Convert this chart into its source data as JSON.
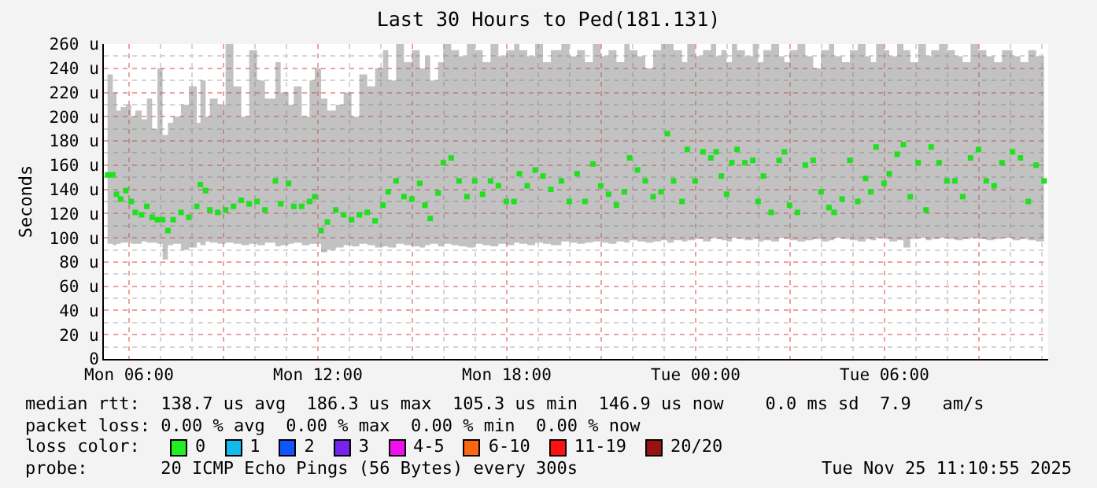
{
  "chart_data": {
    "type": "scatter",
    "title": "Last 30 Hours to Ped(181.131)",
    "ylabel": "Seconds",
    "xlim": [
      "2025-11-24T05:12",
      "2025-11-25T11:12"
    ],
    "xticks": [
      {
        "value": "2025-11-24T06:00",
        "label": "Mon 06:00"
      },
      {
        "value": "2025-11-24T09:00",
        "label": null
      },
      {
        "value": "2025-11-24T12:00",
        "label": "Mon 12:00"
      },
      {
        "value": "2025-11-24T15:00",
        "label": null
      },
      {
        "value": "2025-11-24T18:00",
        "label": "Mon 18:00"
      },
      {
        "value": "2025-11-24T21:00",
        "label": null
      },
      {
        "value": "2025-11-25T00:00",
        "label": "Tue 00:00"
      },
      {
        "value": "2025-11-25T03:00",
        "label": null
      },
      {
        "value": "2025-11-25T06:00",
        "label": "Tue 06:00"
      },
      {
        "value": "2025-11-25T09:00",
        "label": null
      }
    ],
    "ylim": [
      0,
      260
    ],
    "yticks": [
      0,
      {
        "value": 20,
        "label": "20 u"
      },
      {
        "value": 40,
        "label": "40 u"
      },
      {
        "value": 60,
        "label": "60 u"
      },
      {
        "value": 80,
        "label": "80 u"
      },
      {
        "value": 100,
        "label": "100 u"
      },
      {
        "value": 120,
        "label": "120 u"
      },
      {
        "value": 140,
        "label": "140 u"
      },
      {
        "value": 160,
        "label": "160 u"
      },
      {
        "value": 180,
        "label": "180 u"
      },
      {
        "value": 200,
        "label": "200 u"
      },
      {
        "value": 220,
        "label": "220 u"
      },
      {
        "value": 240,
        "label": "240 u"
      },
      {
        "value": 260,
        "label": "260 u"
      }
    ],
    "grid": true,
    "marker": "square",
    "x": [
      "2025-11-24T05:19",
      "2025-11-24T05:29",
      "2025-11-24T05:36",
      "2025-11-24T05:44",
      "2025-11-24T05:54",
      "2025-11-24T06:04",
      "2025-11-24T06:12",
      "2025-11-24T06:24",
      "2025-11-24T06:34",
      "2025-11-24T06:44",
      "2025-11-24T06:54",
      "2025-11-24T07:04",
      "2025-11-24T07:14",
      "2025-11-24T07:24",
      "2025-11-24T07:39",
      "2025-11-24T07:54",
      "2025-11-24T08:09",
      "2025-11-24T08:16",
      "2025-11-24T08:26",
      "2025-11-24T08:34",
      "2025-11-24T08:49",
      "2025-11-24T09:04",
      "2025-11-24T09:19",
      "2025-11-24T09:34",
      "2025-11-24T09:49",
      "2025-11-24T10:04",
      "2025-11-24T10:19",
      "2025-11-24T10:39",
      "2025-11-24T10:49",
      "2025-11-24T11:04",
      "2025-11-24T11:14",
      "2025-11-24T11:29",
      "2025-11-24T11:44",
      "2025-11-24T11:54",
      "2025-11-24T12:06",
      "2025-11-24T12:18",
      "2025-11-24T12:34",
      "2025-11-24T12:49",
      "2025-11-24T13:04",
      "2025-11-24T13:19",
      "2025-11-24T13:34",
      "2025-11-24T13:49",
      "2025-11-24T14:04",
      "2025-11-24T14:14",
      "2025-11-24T14:29",
      "2025-11-24T14:44",
      "2025-11-24T14:59",
      "2025-11-24T15:14",
      "2025-11-24T15:24",
      "2025-11-24T15:34",
      "2025-11-24T15:49",
      "2025-11-24T15:59",
      "2025-11-24T16:14",
      "2025-11-24T16:29",
      "2025-11-24T16:44",
      "2025-11-24T16:59",
      "2025-11-24T17:14",
      "2025-11-24T17:29",
      "2025-11-24T17:44",
      "2025-11-24T17:59",
      "2025-11-24T18:14",
      "2025-11-24T18:24",
      "2025-11-24T18:39",
      "2025-11-24T18:54",
      "2025-11-24T19:09",
      "2025-11-24T19:24",
      "2025-11-24T19:44",
      "2025-11-24T19:59",
      "2025-11-24T20:14",
      "2025-11-24T20:29",
      "2025-11-24T20:44",
      "2025-11-24T20:59",
      "2025-11-24T21:14",
      "2025-11-24T21:29",
      "2025-11-24T21:44",
      "2025-11-24T21:54",
      "2025-11-24T22:09",
      "2025-11-24T22:24",
      "2025-11-24T22:39",
      "2025-11-24T22:54",
      "2025-11-24T23:06",
      "2025-11-24T23:18",
      "2025-11-24T23:34",
      "2025-11-24T23:44",
      "2025-11-24T23:59",
      "2025-11-25T00:14",
      "2025-11-25T00:29",
      "2025-11-25T00:39",
      "2025-11-25T00:49",
      "2025-11-25T00:59",
      "2025-11-25T01:09",
      "2025-11-25T01:19",
      "2025-11-25T01:34",
      "2025-11-25T01:49",
      "2025-11-25T01:59",
      "2025-11-25T02:09",
      "2025-11-25T02:24",
      "2025-11-25T02:39",
      "2025-11-25T02:49",
      "2025-11-25T02:59",
      "2025-11-25T03:14",
      "2025-11-25T03:29",
      "2025-11-25T03:44",
      "2025-11-25T03:59",
      "2025-11-25T04:14",
      "2025-11-25T04:24",
      "2025-11-25T04:39",
      "2025-11-25T04:54",
      "2025-11-25T05:09",
      "2025-11-25T05:24",
      "2025-11-25T05:34",
      "2025-11-25T05:44",
      "2025-11-25T05:59",
      "2025-11-25T06:09",
      "2025-11-25T06:24",
      "2025-11-25T06:36",
      "2025-11-25T06:49",
      "2025-11-25T07:04",
      "2025-11-25T07:19",
      "2025-11-25T07:29",
      "2025-11-25T07:44",
      "2025-11-25T07:59",
      "2025-11-25T08:14",
      "2025-11-25T08:29",
      "2025-11-25T08:44",
      "2025-11-25T08:59",
      "2025-11-25T09:14",
      "2025-11-25T09:29",
      "2025-11-25T09:44",
      "2025-11-25T10:04",
      "2025-11-25T10:19",
      "2025-11-25T10:34",
      "2025-11-25T10:49",
      "2025-11-25T11:04"
    ],
    "series": [
      {
        "color": "#20e020",
        "values": [
          152,
          152,
          136,
          132,
          139,
          130,
          121,
          119,
          126,
          117,
          115,
          115,
          106,
          115,
          121,
          117,
          126,
          144,
          139,
          123,
          121,
          123,
          126,
          131,
          128,
          130,
          123,
          147,
          128,
          145,
          126,
          126,
          130,
          134,
          106,
          113,
          123,
          119,
          115,
          119,
          121,
          114,
          127,
          138,
          147,
          134,
          132,
          145,
          127,
          116,
          137,
          162,
          166,
          147,
          134,
          147,
          136,
          147,
          143,
          130,
          130,
          153,
          143,
          156,
          151,
          140,
          147,
          130,
          153,
          130,
          161,
          143,
          136,
          127,
          138,
          166,
          156,
          147,
          134,
          138,
          186,
          147,
          130,
          173,
          147,
          171,
          166,
          171,
          151,
          136,
          162,
          173,
          162,
          164,
          130,
          151,
          121,
          164,
          171,
          127,
          121,
          160,
          164,
          138,
          125,
          121,
          132,
          164,
          130,
          149,
          138,
          175,
          145,
          153,
          169,
          177,
          134,
          162,
          123,
          175,
          162,
          147,
          147,
          134,
          166,
          173,
          147,
          143,
          162,
          171,
          166,
          130,
          160,
          147
        ],
        "lower": [
          95,
          94,
          95,
          96,
          96,
          95,
          95,
          97,
          96,
          96,
          95,
          82,
          94,
          95,
          90,
          92,
          96,
          94,
          97,
          96,
          95,
          96,
          95,
          94,
          95,
          94,
          96,
          93,
          94,
          95,
          96,
          94,
          95,
          95,
          88,
          90,
          92,
          94,
          93,
          95,
          94,
          92,
          93,
          92,
          95,
          94,
          93,
          92,
          94,
          95,
          93,
          95,
          94,
          93,
          92,
          95,
          94,
          93,
          95,
          94,
          96,
          95,
          94,
          96,
          95,
          94,
          97,
          96,
          95,
          96,
          97,
          96,
          95,
          97,
          96,
          98,
          97,
          96,
          97,
          98,
          96,
          98,
          97,
          98,
          99,
          97,
          100,
          99,
          98,
          97,
          100,
          99,
          98,
          99,
          97,
          98,
          97,
          100,
          99,
          98,
          97,
          98,
          99,
          97,
          98,
          100,
          99,
          98,
          97,
          99,
          98,
          100,
          99,
          97,
          98,
          92,
          99,
          100,
          98,
          99,
          100,
          99,
          98,
          99,
          100,
          99,
          98,
          99,
          100,
          98,
          99,
          98,
          97,
          99
        ],
        "upper": [
          235,
          220,
          205,
          208,
          210,
          200,
          205,
          198,
          215,
          190,
          240,
          185,
          195,
          200,
          210,
          225,
          195,
          230,
          200,
          215,
          210,
          260,
          225,
          200,
          255,
          230,
          215,
          245,
          220,
          210,
          225,
          200,
          230,
          240,
          215,
          205,
          210,
          220,
          200,
          235,
          225,
          240,
          255,
          230,
          260,
          245,
          255,
          240,
          250,
          230,
          245,
          260,
          255,
          250,
          260,
          255,
          245,
          260,
          250,
          255,
          260,
          255,
          250,
          260,
          245,
          255,
          260,
          250,
          255,
          245,
          260,
          250,
          255,
          245,
          260,
          255,
          250,
          240,
          255,
          260,
          260,
          255,
          245,
          260,
          250,
          255,
          260,
          250,
          255,
          245,
          260,
          255,
          250,
          260,
          245,
          255,
          260,
          250,
          245,
          255,
          260,
          250,
          240,
          255,
          260,
          250,
          245,
          255,
          260,
          250,
          245,
          260,
          255,
          250,
          260,
          255,
          245,
          260,
          250,
          255,
          260,
          255,
          250,
          245,
          260,
          255,
          250,
          245,
          255,
          250,
          245,
          255,
          250,
          240
        ]
      }
    ],
    "annotations": [
      "median rtt:  138.7 us avg  186.3 us max  105.3 us min  146.9 us now    0.0 ms sd  7.9   am/s",
      "packet loss: 0.00 % avg  0.00 % max  0.00 % min  0.00 % now",
      "loss color:",
      "0",
      "1",
      "2",
      "3",
      "4-5",
      "6-10",
      "11-19",
      "20/20",
      "probe:       20 ICMP Echo Pings (56 Bytes) every 300s",
      "Tue Nov 25 11:10:55 2025"
    ]
  }
}
